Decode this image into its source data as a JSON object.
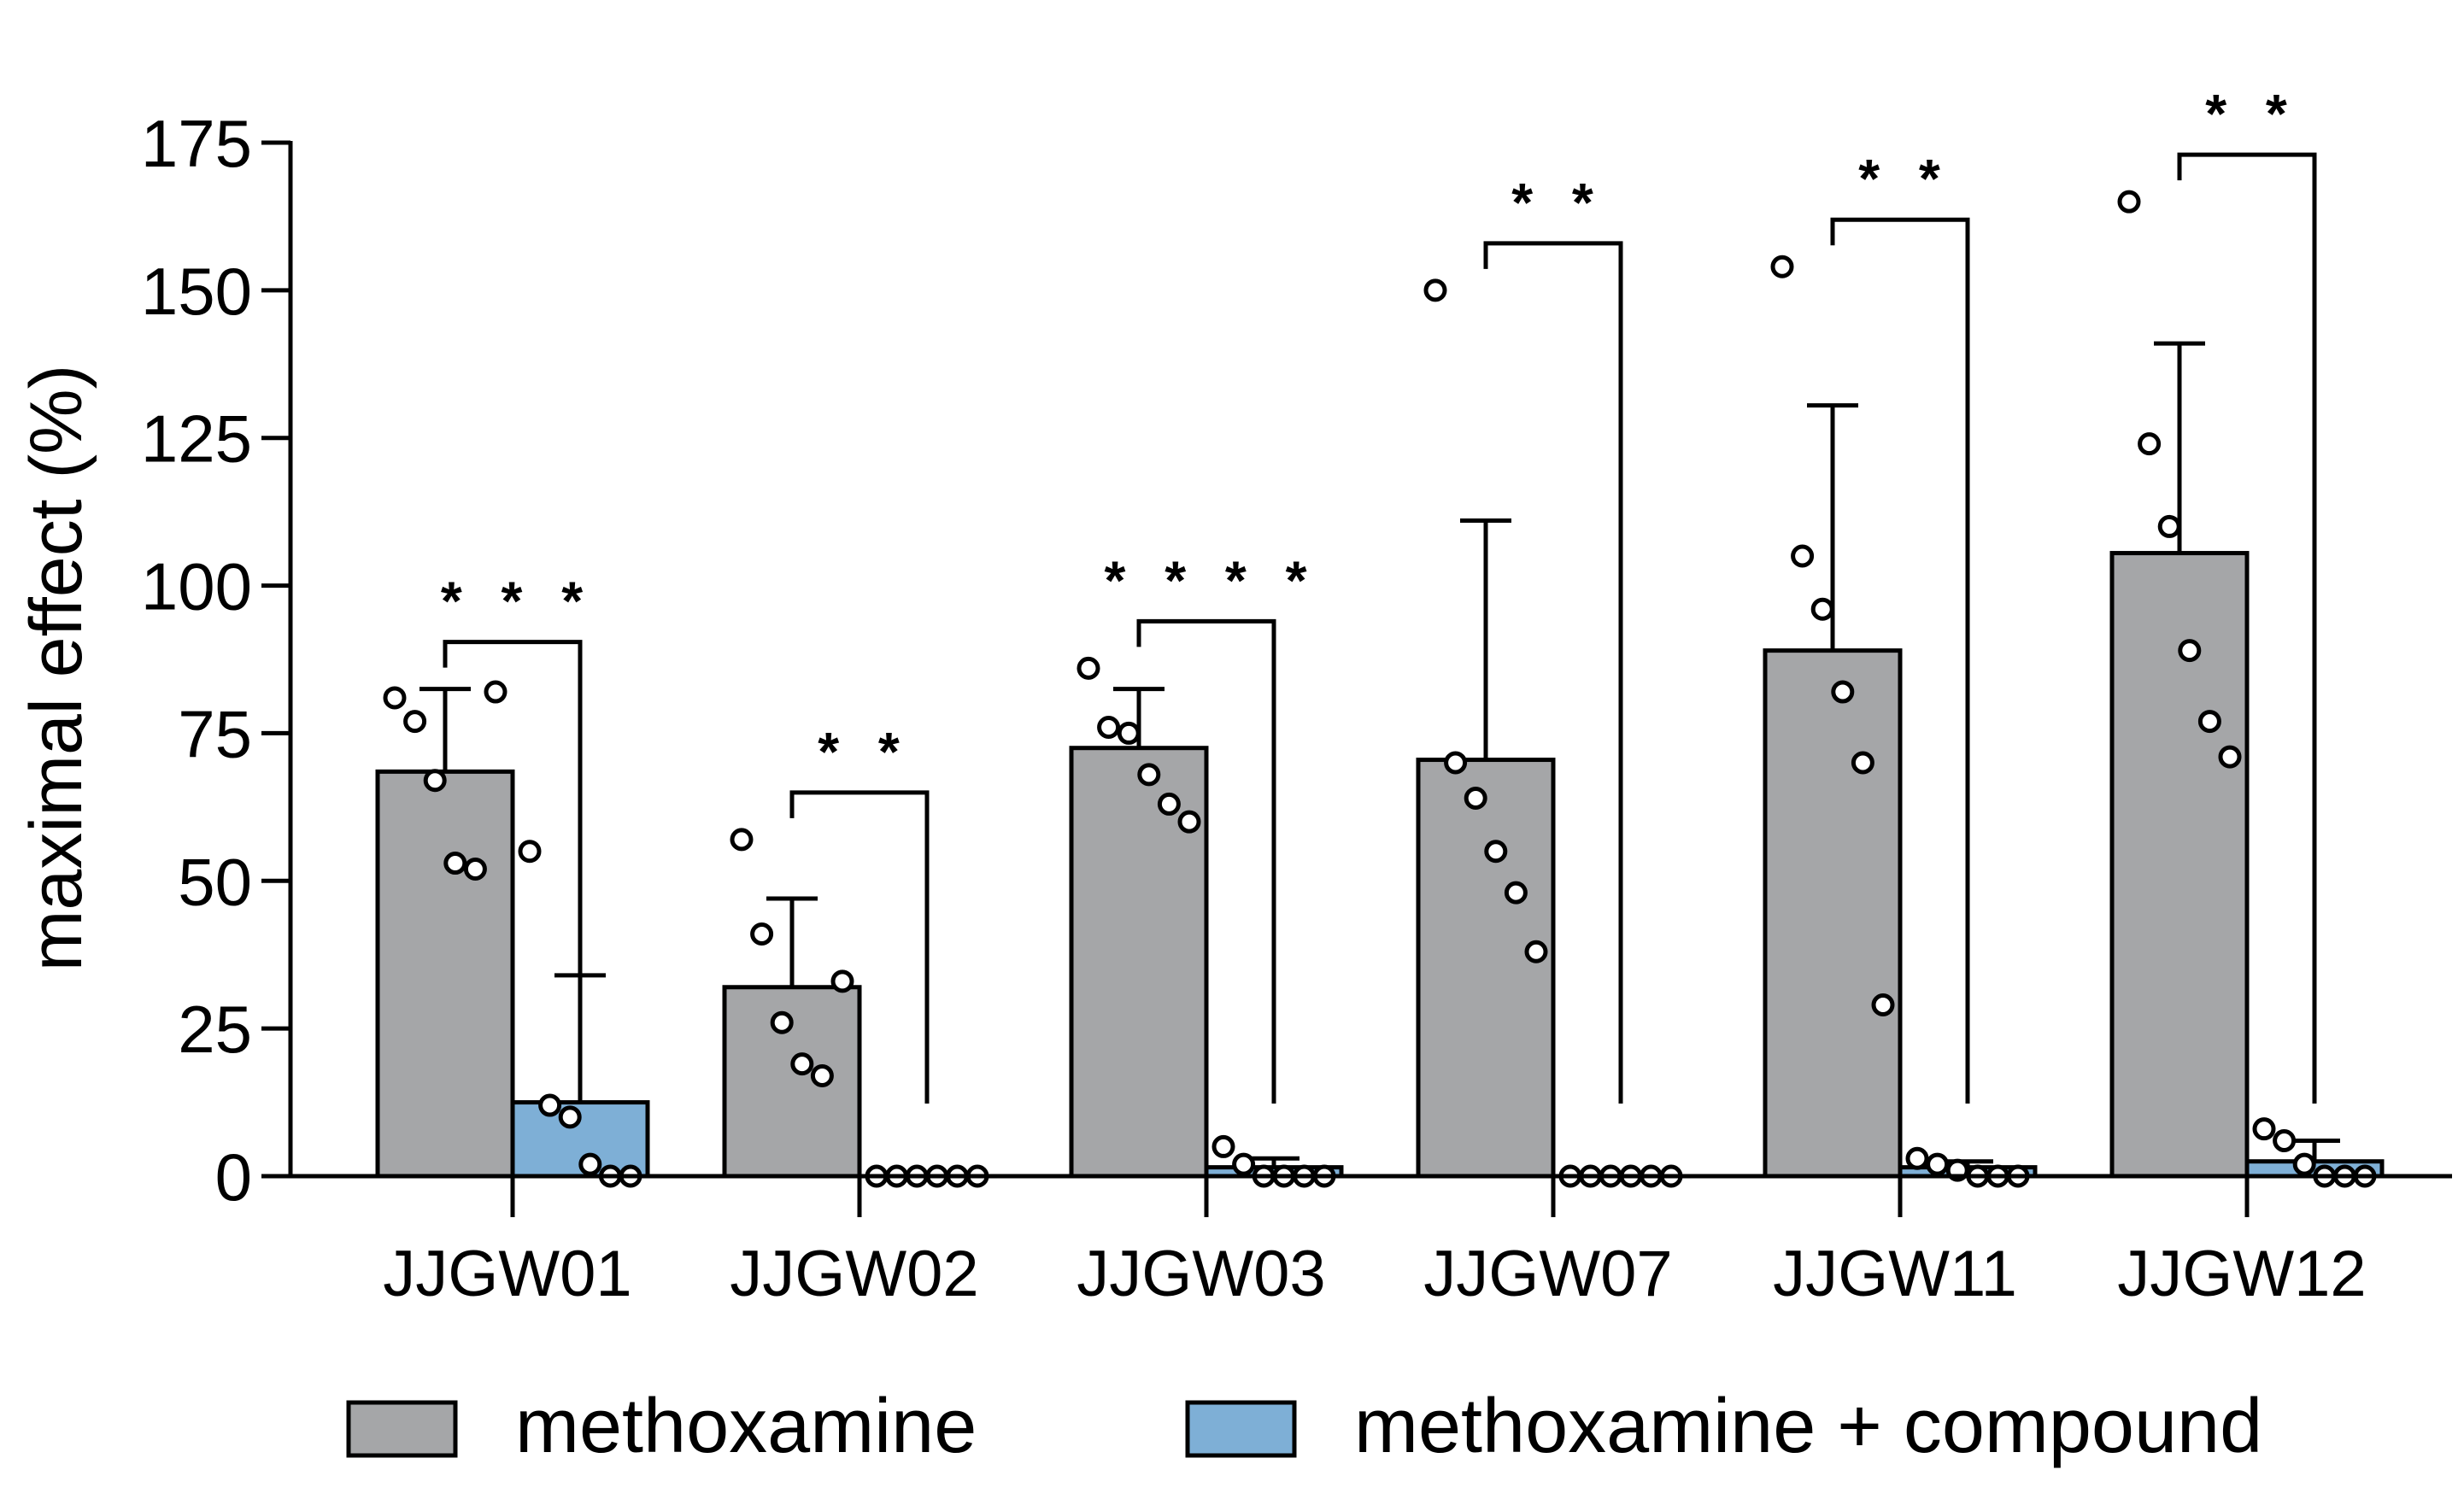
{
  "chart_data": {
    "type": "bar",
    "ylabel": "maximal effect (%)",
    "ylim": [
      0,
      175
    ],
    "yticks": [
      0,
      25,
      50,
      75,
      100,
      125,
      150,
      175
    ],
    "categories": [
      "JJGW01",
      "JJGW02",
      "JJGW03",
      "JJGW07",
      "JJGW11",
      "JJGW12"
    ],
    "series": [
      {
        "name": "methoxamine",
        "color": "#a5a6a8",
        "values": [
          68.5,
          32,
          72.5,
          70.5,
          89,
          105.5
        ],
        "error": [
          14,
          15,
          10,
          40.5,
          41.5,
          35.5
        ],
        "points": [
          [
            81,
            77,
            67,
            53,
            52,
            82
          ],
          [
            57,
            41,
            26,
            19,
            17,
            33
          ],
          [
            86,
            76,
            75,
            68,
            63,
            60
          ],
          [
            150,
            70,
            64,
            55,
            48,
            38
          ],
          [
            154,
            105,
            96,
            82,
            70,
            29
          ],
          [
            165,
            124,
            110,
            89,
            77,
            71
          ]
        ]
      },
      {
        "name": "methoxamine + compound",
        "color": "#7eafd6",
        "values": [
          12.5,
          0,
          1.5,
          0,
          1.5,
          2.5
        ],
        "error": [
          21.5,
          0,
          1.5,
          0,
          1,
          3.5
        ],
        "points": [
          [
            55,
            12,
            10,
            2,
            0,
            0
          ],
          [
            0,
            0,
            0,
            0,
            0,
            0
          ],
          [
            5,
            2,
            0,
            0,
            0,
            0
          ],
          [
            0,
            0,
            0,
            0,
            0,
            0
          ],
          [
            3,
            2,
            1,
            0,
            0,
            0
          ],
          [
            8,
            6,
            2,
            0,
            0,
            0
          ]
        ]
      }
    ],
    "significance": [
      "* * *",
      "* *",
      "* * * *",
      "* *",
      "* *",
      "* *"
    ],
    "legend": [
      "methoxamine",
      "methoxamine + compound"
    ],
    "legend_position": "bottom"
  }
}
